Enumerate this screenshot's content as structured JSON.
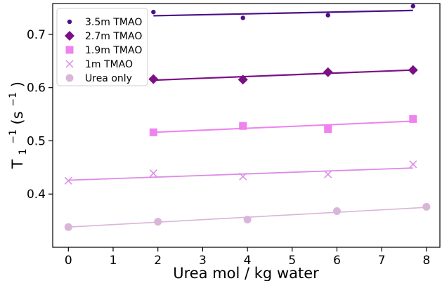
{
  "chart_data": {
    "type": "scatter",
    "xlabel": "Urea mol / kg water",
    "ylabel_base": "T",
    "ylabel_sub": "1",
    "ylabel_sup": "−1",
    "ylabel_unit_open": " (s",
    "ylabel_unit_sup": "−1",
    "ylabel_unit_close": ")",
    "xlim": [
      -0.35,
      8.3
    ],
    "ylim": [
      0.3,
      0.758
    ],
    "x_ticks": [
      0,
      1,
      2,
      3,
      4,
      5,
      6,
      7,
      8
    ],
    "y_ticks": [
      0.4,
      0.5,
      0.6,
      0.7
    ],
    "y_tick_labels": [
      "0.4",
      "0.5",
      "0.6",
      "0.7"
    ],
    "grid": false,
    "legend_position": "top-left",
    "series": [
      {
        "name": "3.5m TMAO",
        "color": "#4b0f86",
        "marker": "small-circle",
        "x": [
          1.9,
          3.9,
          5.8,
          7.7
        ],
        "y": [
          0.742,
          0.731,
          0.736,
          0.753
        ],
        "fit": {
          "x": [
            1.9,
            7.7
          ],
          "y": [
            0.735,
            0.745
          ]
        }
      },
      {
        "name": "2.7m TMAO",
        "color": "#7b0f86",
        "marker": "diamond",
        "x": [
          1.9,
          3.9,
          5.8,
          7.7
        ],
        "y": [
          0.616,
          0.615,
          0.629,
          0.633
        ],
        "fit": {
          "x": [
            1.9,
            7.7
          ],
          "y": [
            0.614,
            0.633
          ]
        }
      },
      {
        "name": "1.9m TMAO",
        "color": "#ee82ee",
        "marker": "square",
        "x": [
          1.9,
          3.9,
          5.8,
          7.7
        ],
        "y": [
          0.516,
          0.528,
          0.522,
          0.541
        ],
        "fit": {
          "x": [
            1.9,
            7.7
          ],
          "y": [
            0.516,
            0.537
          ]
        }
      },
      {
        "name": "1m TMAO",
        "color": "#dc8ce6",
        "marker": "x",
        "x": [
          0,
          1.9,
          3.9,
          5.8,
          7.7
        ],
        "y": [
          0.425,
          0.439,
          0.433,
          0.437,
          0.456
        ],
        "fit": {
          "x": [
            0,
            7.7
          ],
          "y": [
            0.426,
            0.449
          ]
        }
      },
      {
        "name": "Urea only",
        "color": "#d9b5d9",
        "marker": "circle",
        "x": [
          0,
          2,
          4,
          6,
          8
        ],
        "y": [
          0.338,
          0.348,
          0.352,
          0.368,
          0.376
        ],
        "fit": {
          "x": [
            0,
            8
          ],
          "y": [
            0.338,
            0.375
          ]
        }
      }
    ]
  }
}
